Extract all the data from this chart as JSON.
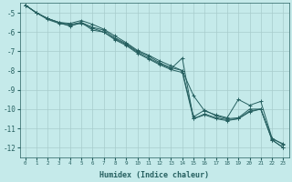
{
  "xlabel": "Humidex (Indice chaleur)",
  "ylabel": "",
  "background_color": "#c5eaea",
  "grid_color": "#a8cccc",
  "line_color": "#266060",
  "xlim": [
    -0.5,
    23.5
  ],
  "ylim": [
    -12.5,
    -4.5
  ],
  "yticks": [
    -12,
    -11,
    -10,
    -9,
    -8,
    -7,
    -6,
    -5
  ],
  "xticks": [
    0,
    1,
    2,
    3,
    4,
    5,
    6,
    7,
    8,
    9,
    10,
    11,
    12,
    13,
    14,
    15,
    16,
    17,
    18,
    19,
    20,
    21,
    22,
    23
  ],
  "series": [
    {
      "x": [
        0,
        1,
        2,
        3,
        4,
        5,
        6,
        7,
        8,
        9,
        10,
        11,
        12,
        13,
        14,
        15,
        16,
        17,
        18,
        19,
        20,
        21,
        22,
        23
      ],
      "y": [
        -4.6,
        -5.0,
        -5.3,
        -5.5,
        -5.55,
        -5.4,
        -5.6,
        -5.85,
        -6.2,
        -6.55,
        -6.95,
        -7.2,
        -7.5,
        -7.75,
        -8.0,
        -9.3,
        -10.1,
        -10.3,
        -10.45,
        -9.5,
        -9.8,
        -9.6,
        -11.5,
        -11.85
      ]
    },
    {
      "x": [
        0,
        1,
        2,
        3,
        4,
        5,
        6,
        7,
        8,
        9,
        10,
        11,
        12,
        13,
        14,
        15,
        16,
        17,
        18,
        19,
        20,
        21,
        22,
        23
      ],
      "y": [
        -4.6,
        -5.0,
        -5.3,
        -5.5,
        -5.6,
        -5.5,
        -5.75,
        -5.9,
        -6.3,
        -6.6,
        -7.0,
        -7.25,
        -7.6,
        -7.85,
        -8.0,
        -10.4,
        -10.05,
        -10.35,
        -10.5,
        -10.45,
        -10.0,
        -10.0,
        -11.55,
        -11.8
      ]
    },
    {
      "x": [
        0,
        1,
        2,
        3,
        4,
        5,
        6,
        7,
        8,
        9,
        10,
        11,
        12,
        13,
        14,
        15,
        16,
        17,
        18,
        19,
        20,
        21,
        22,
        23
      ],
      "y": [
        -4.6,
        -5.0,
        -5.35,
        -5.55,
        -5.65,
        -5.55,
        -5.8,
        -6.0,
        -6.35,
        -6.65,
        -7.05,
        -7.35,
        -7.65,
        -7.9,
        -7.35,
        -10.5,
        -10.25,
        -10.45,
        -10.55,
        -10.5,
        -10.1,
        -10.0,
        -11.6,
        -12.0
      ]
    },
    {
      "x": [
        0,
        1,
        2,
        3,
        4,
        5,
        6,
        7,
        8,
        9,
        10,
        11,
        12,
        13,
        14,
        15,
        16,
        17,
        18,
        19,
        20,
        21,
        22,
        23
      ],
      "y": [
        -4.6,
        -5.0,
        -5.3,
        -5.5,
        -5.7,
        -5.5,
        -5.9,
        -6.0,
        -6.4,
        -6.7,
        -7.1,
        -7.4,
        -7.7,
        -7.95,
        -8.1,
        -10.5,
        -10.3,
        -10.5,
        -10.6,
        -10.5,
        -10.15,
        -10.0,
        -11.6,
        -12.0
      ]
    }
  ]
}
